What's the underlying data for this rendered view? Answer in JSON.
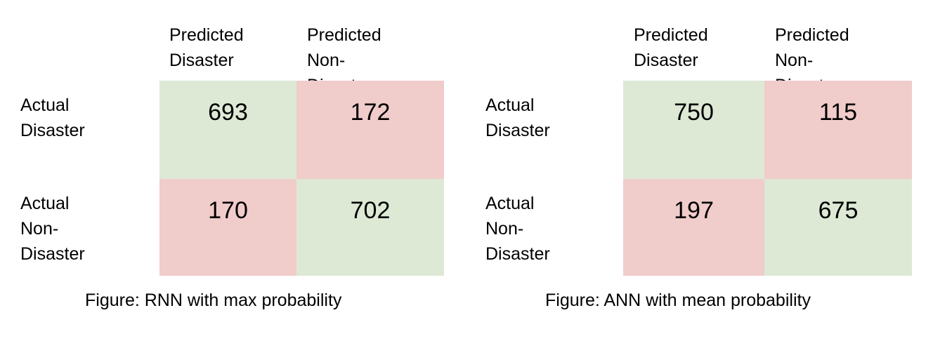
{
  "chart_data": [
    {
      "type": "heatmap",
      "caption": "Figure: RNN with max probability",
      "col_labels": [
        "Predicted\nDisaster",
        "Predicted\nNon-Disaster"
      ],
      "row_labels": [
        "Actual Disaster",
        "Actual\nNon-Disaster"
      ],
      "values": [
        [
          693,
          172
        ],
        [
          170,
          702
        ]
      ],
      "colors": {
        "correct": "#dde9d5",
        "incorrect": "#f0cccb"
      }
    },
    {
      "type": "heatmap",
      "caption": "Figure: ANN with mean probability",
      "col_labels": [
        "Predicted\nDisaster",
        "Predicted\nNon-Disaster"
      ],
      "row_labels": [
        "Actual\nDisaster",
        "Actual\nNon-Disaster"
      ],
      "values": [
        [
          750,
          115
        ],
        [
          197,
          675
        ]
      ],
      "colors": {
        "correct": "#dde9d5",
        "incorrect": "#f0cccb"
      }
    }
  ]
}
